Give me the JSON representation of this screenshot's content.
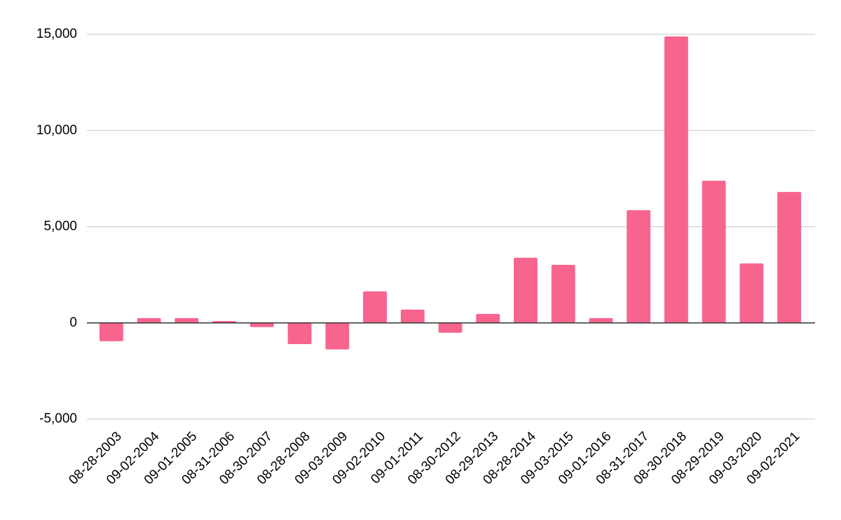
{
  "chart_data": {
    "type": "bar",
    "categories": [
      "08-28-2003",
      "09-02-2004",
      "09-01-2005",
      "08-31-2006",
      "08-30-2007",
      "08-28-2008",
      "09-03-2009",
      "09-02-2010",
      "09-01-2011",
      "08-30-2012",
      "08-29-2013",
      "08-28-2014",
      "09-03-2015",
      "09-01-2016",
      "08-31-2017",
      "08-30-2018",
      "08-29-2019",
      "09-03-2020",
      "09-02-2021"
    ],
    "values": [
      -950,
      250,
      250,
      100,
      -220,
      -1100,
      -1380,
      1640,
      690,
      -510,
      470,
      3390,
      3020,
      250,
      5860,
      14890,
      7390,
      3090,
      6810
    ],
    "color": "#f7658f",
    "ylim": [
      -5000,
      15000
    ],
    "yticks": [
      {
        "value": -5000,
        "label": "-5,000"
      },
      0,
      {
        "value": 5000,
        "label": "5,000"
      },
      {
        "value": 10000,
        "label": "10,000"
      },
      {
        "value": 15000,
        "label": "15,000"
      }
    ],
    "grid": true
  }
}
